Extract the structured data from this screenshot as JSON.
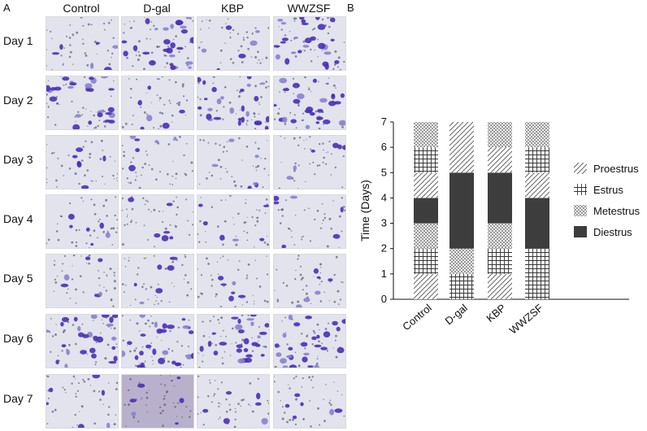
{
  "panel_a": {
    "letter": "A",
    "columns": [
      "Control",
      "D-gal",
      "KBP",
      "WWZSF"
    ],
    "rows": [
      "Day 1",
      "Day 2",
      "Day 3",
      "Day 4",
      "Day 5",
      "Day 6",
      "Day 7"
    ]
  },
  "panel_b": {
    "letter": "B"
  },
  "colors": {
    "stain": "#4a2fb8",
    "stain_light": "#8a7fd0",
    "diestrus_fill": "#3d3d3d"
  },
  "chart_data": {
    "type": "bar",
    "stacked": true,
    "categories": [
      "Control",
      "D-gal",
      "KBP",
      "WWZSF"
    ],
    "ylabel": "Time (Days)",
    "ylim": [
      0,
      7
    ],
    "yticks": [
      0,
      1,
      2,
      3,
      4,
      5,
      6,
      7
    ],
    "legend_position": "right",
    "legend": [
      {
        "name": "Proestrus",
        "pattern": "diagonal-hatch"
      },
      {
        "name": "Estrus",
        "pattern": "grid-hatch"
      },
      {
        "name": "Metestrus",
        "pattern": "crosshatch"
      },
      {
        "name": "Diestrus",
        "pattern": "solid-dark"
      }
    ],
    "stacks": [
      {
        "category": "Control",
        "segments": [
          {
            "phase": "Proestrus",
            "from": 0,
            "to": 1
          },
          {
            "phase": "Estrus",
            "from": 1,
            "to": 2
          },
          {
            "phase": "Metestrus",
            "from": 2,
            "to": 3
          },
          {
            "phase": "Diestrus",
            "from": 3,
            "to": 4
          },
          {
            "phase": "Proestrus",
            "from": 4,
            "to": 5
          },
          {
            "phase": "Estrus",
            "from": 5,
            "to": 6
          },
          {
            "phase": "Metestrus",
            "from": 6,
            "to": 7
          }
        ]
      },
      {
        "category": "D-gal",
        "segments": [
          {
            "phase": "Estrus",
            "from": 0,
            "to": 1
          },
          {
            "phase": "Metestrus",
            "from": 1,
            "to": 2
          },
          {
            "phase": "Diestrus",
            "from": 2,
            "to": 5
          },
          {
            "phase": "Proestrus",
            "from": 5,
            "to": 7
          }
        ]
      },
      {
        "category": "KBP",
        "segments": [
          {
            "phase": "Proestrus",
            "from": 0,
            "to": 1
          },
          {
            "phase": "Estrus",
            "from": 1,
            "to": 2
          },
          {
            "phase": "Metestrus",
            "from": 2,
            "to": 3
          },
          {
            "phase": "Diestrus",
            "from": 3,
            "to": 5
          },
          {
            "phase": "Proestrus",
            "from": 5,
            "to": 6
          },
          {
            "phase": "Metestrus",
            "from": 6,
            "to": 7
          }
        ]
      },
      {
        "category": "WWZSF",
        "segments": [
          {
            "phase": "Estrus",
            "from": 0,
            "to": 2
          },
          {
            "phase": "Diestrus",
            "from": 2,
            "to": 4
          },
          {
            "phase": "Proestrus",
            "from": 4,
            "to": 5
          },
          {
            "phase": "Estrus",
            "from": 5,
            "to": 6
          },
          {
            "phase": "Metestrus",
            "from": 6,
            "to": 7
          }
        ]
      }
    ]
  }
}
